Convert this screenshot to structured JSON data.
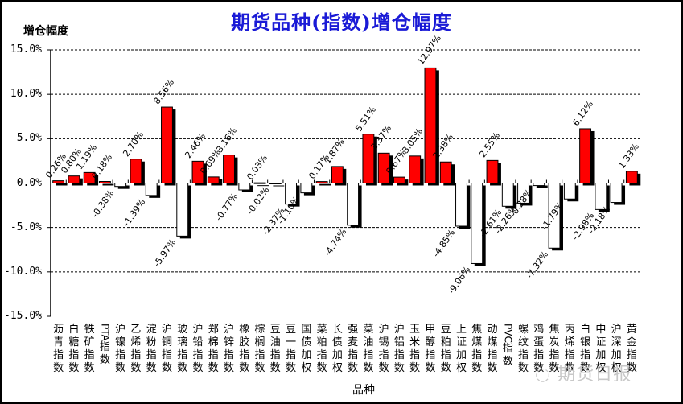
{
  "chart_data": {
    "type": "bar",
    "title": "期货品种(指数)增仓幅度",
    "ylabel": "增仓幅度",
    "xlabel": "品种",
    "ylim": [
      -15,
      15
    ],
    "yticks": [
      "15.0%",
      "10.0%",
      "5.0%",
      "0.0%",
      "-5.0%",
      "-10.0%",
      "-15.0%"
    ],
    "grid": true,
    "legend": "none",
    "colors": {
      "positive": "#ff0000",
      "negative": "#ffffff",
      "shadow": "#000000",
      "title": "#1a1ad6"
    },
    "categories": [
      "沥青指数",
      "白糖指数",
      "铁矿指数",
      "PTA指数",
      "沪镍指数",
      "乙烯指数",
      "淀粉指数",
      "沪铜指数",
      "玻璃指数",
      "沪铅指数",
      "郑棉指数",
      "沪锌指数",
      "橡胶指数",
      "棕榈指数",
      "豆油指数",
      "豆一指数",
      "国债加权",
      "菜粕指数",
      "长债加权",
      "强麦指数",
      "菜油指数",
      "沪锡指数",
      "沪铝指数",
      "玉米指数",
      "甲醇指数",
      "豆粕指数",
      "上证加权",
      "焦煤指数",
      "动煤指数",
      "PVC指数",
      "螺纹指数",
      "鸡蛋指数",
      "焦炭指数",
      "丙烯指数",
      "白银指数",
      "中证加权",
      "沪深加权",
      "黄金指数"
    ],
    "values": [
      0.26,
      0.8,
      1.19,
      0.18,
      -0.38,
      2.7,
      -1.39,
      8.56,
      -5.97,
      2.46,
      0.69,
      3.16,
      -0.77,
      0.03,
      -0.02,
      -2.37,
      -1.1,
      0.17,
      1.87,
      -4.74,
      5.51,
      3.37,
      0.67,
      3.05,
      12.97,
      2.38,
      -4.85,
      -9.06,
      2.55,
      -2.61,
      -2.26,
      -0.28,
      -7.32,
      -1.79,
      6.12,
      -2.98,
      -2.18,
      1.33
    ],
    "data_labels": [
      "0.26%",
      "0.80%",
      "1.19%",
      "0.18%",
      "-0.38%",
      "2.70%",
      "-1.39%",
      "8.56%",
      "-5.97%",
      "2.46%",
      "0.69%",
      "3.16%",
      "-0.77%",
      "0.03%",
      "-0.02%",
      "-2.37%",
      "-1.10%",
      "0.17%",
      "1.87%",
      "-4.74%",
      "5.51%",
      "3.37%",
      "0.67%",
      "3.05%",
      "12.97%",
      "2.38%",
      "-4.85%",
      "-9.06%",
      "2.55%",
      "-2.61%",
      "-2.26%",
      "-0.28%",
      "-7.32%",
      "-1.79%",
      "6.12%",
      "-2.98%",
      "-2.18%",
      "1.33%"
    ]
  },
  "watermark": "期货日报"
}
